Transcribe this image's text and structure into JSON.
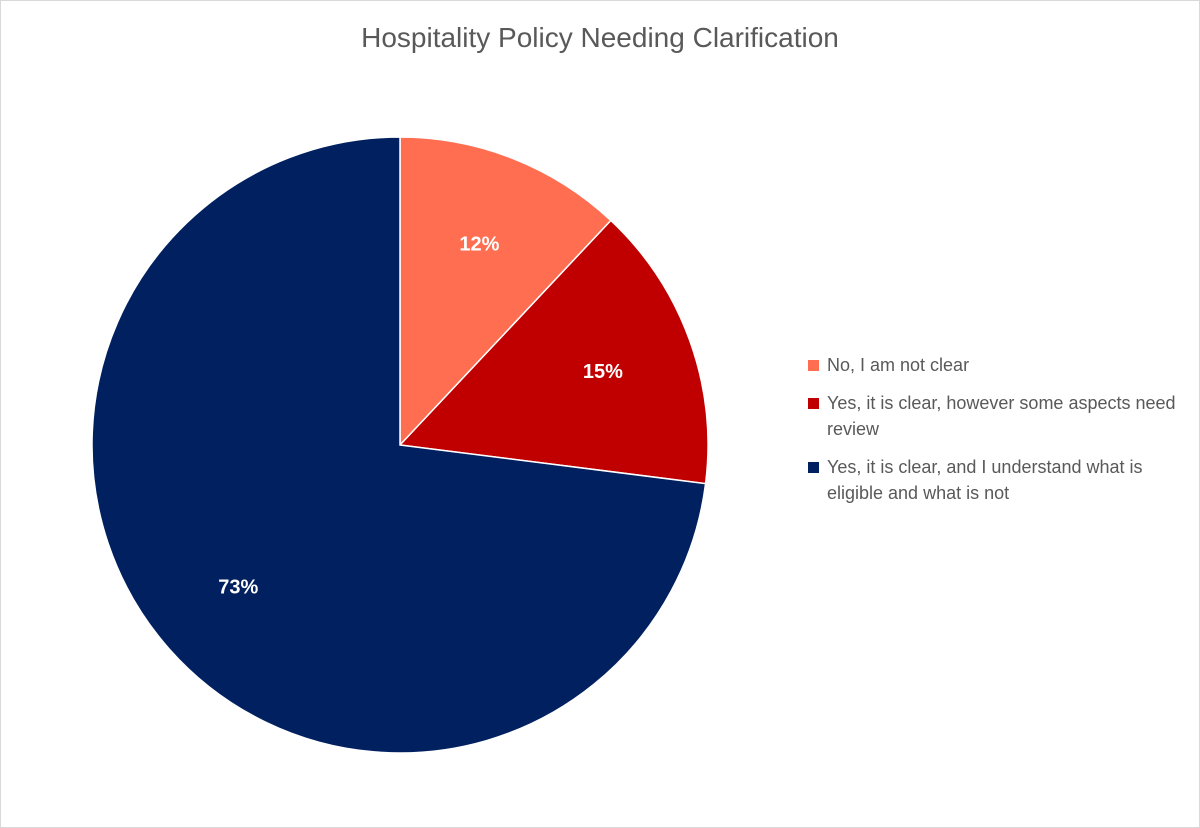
{
  "chart_data": {
    "type": "pie",
    "title": "Hospitality Policy Needing Clarification",
    "slices": [
      {
        "label": "No, I am not clear",
        "value": 12,
        "display": "12%",
        "color": "#ff6e50"
      },
      {
        "label": "Yes, it is clear, however some aspects need review",
        "value": 15,
        "display": "15%",
        "color": "#c00000"
      },
      {
        "label": "Yes, it is clear, and I understand what is eligible and what is not",
        "value": 73,
        "display": "73%",
        "color": "#002060"
      }
    ],
    "start_angle": "12 o'clock",
    "direction": "clockwise",
    "legend_position": "right"
  }
}
